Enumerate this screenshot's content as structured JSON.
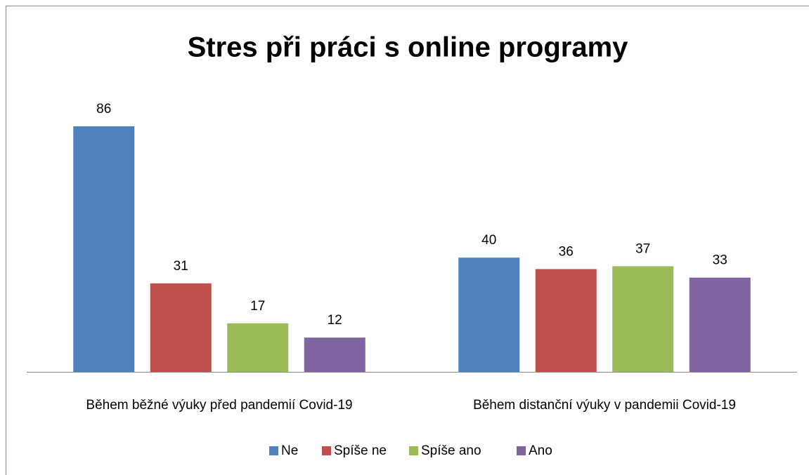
{
  "chart_data": {
    "type": "bar",
    "title": "Stres při práci s online programy",
    "categories": [
      "Během běžné výuky před pandemií Covid-19",
      "Během distanční výuky v pandemii Covid-19"
    ],
    "series": [
      {
        "name": "Ne",
        "color": "#4f81bd",
        "values": [
          86,
          40
        ]
      },
      {
        "name": "Spíše ne",
        "color": "#c0504d",
        "values": [
          31,
          36
        ]
      },
      {
        "name": "Spíše ano",
        "color": "#9bbb59",
        "values": [
          17,
          37
        ]
      },
      {
        "name": "Ano",
        "color": "#8064a2",
        "values": [
          12,
          33
        ]
      }
    ],
    "legend": "bottom"
  }
}
